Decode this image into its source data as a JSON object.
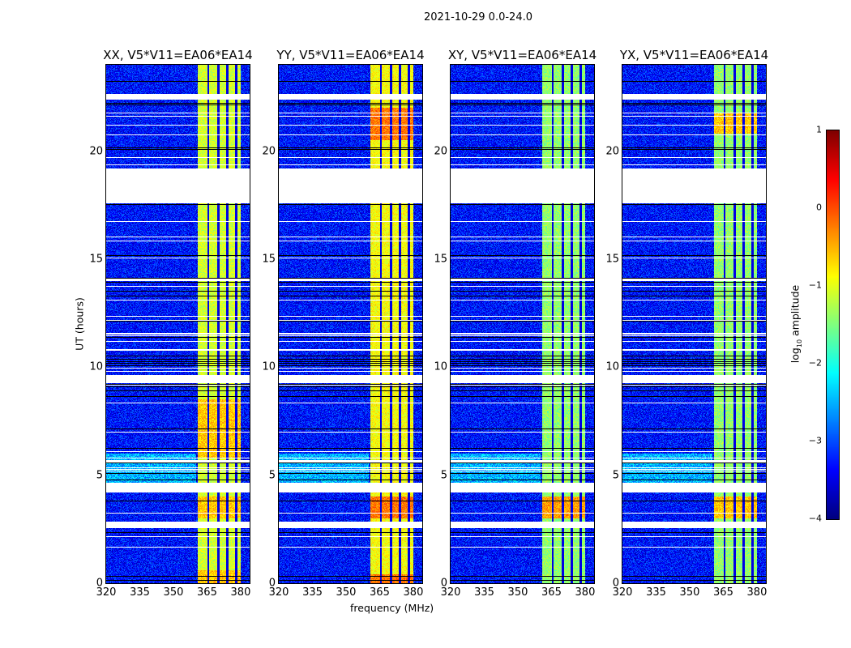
{
  "chart_data": {
    "type": "heatmap",
    "title": "2021-10-29 0.0-24.0",
    "xlabel": "frequency (MHz)",
    "ylabel": "UT (hours)",
    "xlim": [
      320,
      384
    ],
    "ylim": [
      0,
      24
    ],
    "xticks": [
      "320",
      "335",
      "350",
      "365",
      "380"
    ],
    "xtick_values": [
      320,
      335,
      350,
      365,
      380
    ],
    "yticks": [
      "0",
      "5",
      "10",
      "15",
      "20"
    ],
    "ytick_values": [
      0,
      5,
      10,
      15,
      20
    ],
    "colorbar": {
      "label": "log10 amplitude",
      "label_main": "log",
      "label_sub": "10",
      "label_rest": " amplitude",
      "range": [
        -4,
        1
      ],
      "ticks": [
        "1",
        "0",
        "−1",
        "−2",
        "−3",
        "−4"
      ],
      "tick_values": [
        1,
        0,
        -1,
        -2,
        -3,
        -4
      ],
      "colormap": "jet"
    },
    "background_level": -3.3,
    "rfi_band_mhz": [
      361,
      380
    ],
    "rfi_band_channel_gaps_mhz": [
      365.5,
      370,
      374,
      378
    ],
    "flagged_hours": [
      [
        17.6,
        19.2
      ],
      [
        22.4,
        22.65
      ],
      [
        9.25,
        9.65
      ],
      [
        4.2,
        4.65
      ],
      [
        2.55,
        2.85
      ],
      [
        14.0,
        14.1
      ],
      [
        5.6,
        5.7
      ],
      [
        11.5,
        11.6
      ]
    ],
    "panels": [
      {
        "title": "XX, V5*V11=EA06*EA14",
        "band_level": -1.1,
        "hot_hours": [
          [
            0,
            0.6
          ],
          [
            3.0,
            4.0
          ],
          [
            5.8,
            8.5
          ]
        ],
        "hot_level": -0.6
      },
      {
        "title": "YY, V5*V11=EA06*EA14",
        "band_level": -0.9,
        "hot_hours": [
          [
            0,
            0.4
          ],
          [
            3.0,
            4.0
          ],
          [
            20.5,
            22.0
          ]
        ],
        "hot_level": -0.2
      },
      {
        "title": "XY, V5*V11=EA06*EA14",
        "band_level": -1.4,
        "hot_hours": [
          [
            3.0,
            4.0
          ]
        ],
        "hot_level": -0.4
      },
      {
        "title": "YX, V5*V11=EA06*EA14",
        "band_level": -1.4,
        "hot_hours": [
          [
            3.0,
            4.0
          ],
          [
            20.8,
            21.8
          ]
        ],
        "hot_level": -0.6
      }
    ]
  }
}
